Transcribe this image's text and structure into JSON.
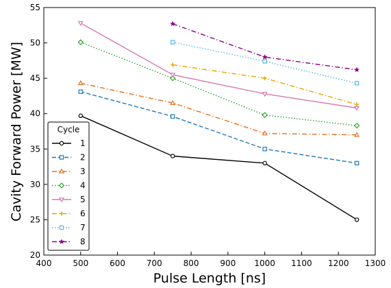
{
  "chart_data": {
    "type": "line",
    "xlabel": "Pulse Length [ns]",
    "ylabel": "Cavity Forward Power [MW]",
    "xlim": [
      400,
      1300
    ],
    "ylim": [
      20,
      55
    ],
    "xticks": [
      400,
      500,
      600,
      700,
      800,
      900,
      1000,
      1100,
      1200,
      1300
    ],
    "yticks": [
      20,
      25,
      30,
      35,
      40,
      45,
      50,
      55
    ],
    "grid": false,
    "legend": {
      "title": "Cycle",
      "placement": "lower-left"
    },
    "series": [
      {
        "name": "1",
        "color": "#000000",
        "dash": "solid",
        "marker": "circle",
        "x": [
          500,
          750,
          1000,
          1250
        ],
        "y": [
          39.7,
          34.0,
          33.0,
          25.0
        ]
      },
      {
        "name": "2",
        "color": "#1f77b4",
        "dash": "dashed",
        "marker": "square",
        "x": [
          500,
          750,
          1000,
          1250
        ],
        "y": [
          43.1,
          39.6,
          35.0,
          33.0
        ]
      },
      {
        "name": "3",
        "color": "#e07020",
        "dash": "dashdot",
        "marker": "triangle-up",
        "x": [
          500,
          750,
          1000,
          1250
        ],
        "y": [
          44.3,
          41.5,
          37.2,
          37.0
        ]
      },
      {
        "name": "4",
        "color": "#2ca02c",
        "dash": "dotted",
        "marker": "diamond",
        "x": [
          500,
          750,
          1000,
          1250
        ],
        "y": [
          50.1,
          45.0,
          39.8,
          38.3
        ]
      },
      {
        "name": "5",
        "color": "#d67ab1",
        "dash": "solid",
        "marker": "triangle-down",
        "x": [
          500,
          750,
          1000,
          1250
        ],
        "y": [
          52.8,
          45.5,
          42.8,
          40.8
        ]
      },
      {
        "name": "6",
        "color": "#e6a400",
        "dash": "dashdot",
        "marker": "plus",
        "x": [
          750,
          1000,
          1250
        ],
        "y": [
          46.9,
          45.0,
          41.3
        ]
      },
      {
        "name": "7",
        "color": "#56b4e9",
        "dash": "dotted",
        "marker": "square",
        "x": [
          750,
          1000,
          1250
        ],
        "y": [
          50.1,
          47.4,
          44.3
        ]
      },
      {
        "name": "8",
        "color": "#8b008b",
        "dash": "dashdot",
        "marker": "star",
        "x": [
          750,
          1000,
          1250
        ],
        "y": [
          52.7,
          48.0,
          46.2
        ]
      }
    ]
  }
}
